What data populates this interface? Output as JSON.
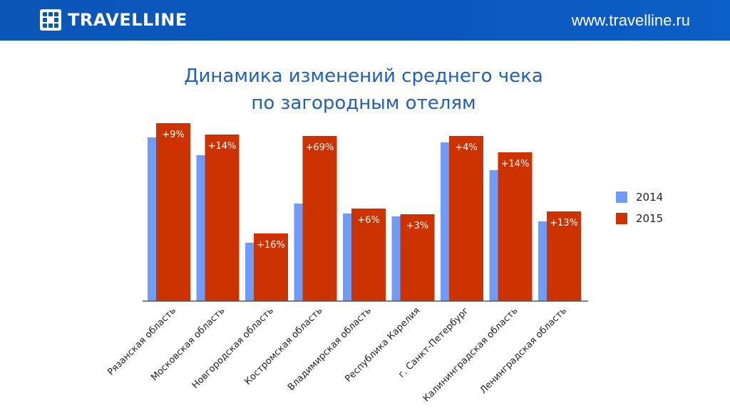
{
  "header": {
    "brand": "TRAVELLINE",
    "website": "www.travelline.ru",
    "logo_icon": "dot-grid-logo-icon",
    "background": "#0b57b8"
  },
  "title": {
    "line1": "Динамика изменений среднего чека",
    "line2": "по загородным отелям",
    "color": "#1f5fbf"
  },
  "chart_data": {
    "type": "bar",
    "title": "Динамика изменений среднего чека по загородным отелям",
    "xlabel": "",
    "ylabel": "",
    "categories": [
      "Рязанская область",
      "Московская область",
      "Новгородская область",
      "Костромская область",
      "Владимирская область",
      "Республика Карелия",
      "г. Санкт-Петербург",
      "Калининградская область",
      "Ленинградская область"
    ],
    "series": [
      {
        "name": "2014",
        "color": "#6e9cf7",
        "values": [
          230,
          205,
          82,
          137,
          123,
          119,
          223,
          184,
          112
        ]
      },
      {
        "name": "2015",
        "color": "#cc3300",
        "values": [
          250,
          234,
          95,
          232,
          130,
          122,
          232,
          209,
          126
        ]
      }
    ],
    "data_labels": [
      "+9%",
      "+14%",
      "+16%",
      "+69%",
      "+6%",
      "+3%",
      "+4%",
      "+14%",
      "+13%"
    ],
    "ylim": [
      0,
      260
    ],
    "grid": false,
    "legend": "right"
  }
}
